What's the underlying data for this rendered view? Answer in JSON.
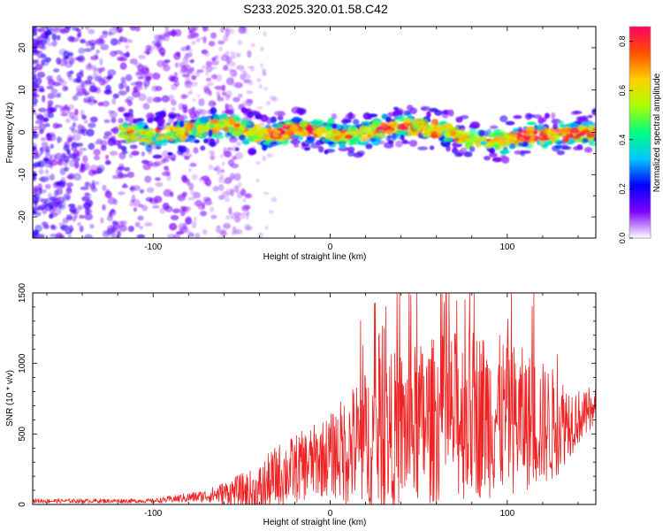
{
  "title": "S233.2025.320.01.58.C42",
  "chart_data": [
    {
      "type": "heatmap",
      "name": "spectrogram",
      "xlabel": "Height of straight line (km)",
      "ylabel": "Frequency (Hz)",
      "xlim": [
        -168,
        150
      ],
      "ylim": [
        -25,
        25
      ],
      "x_ticks": [
        -100,
        0,
        100
      ],
      "y_ticks": [
        -20,
        -10,
        0,
        10,
        20
      ],
      "colorbar": {
        "label": "Normalized spectral amplitude",
        "range": [
          0,
          0.86
        ],
        "ticks": [
          0.0,
          0.2,
          0.4,
          0.6,
          0.8
        ],
        "tick_labels": [
          "0.0",
          "0.2",
          "0.4",
          "0.6",
          "0.8"
        ],
        "colors": [
          "#ffffff",
          "#7e00ff",
          "#0000ff",
          "#00c8ff",
          "#00ff80",
          "#aaff00",
          "#ffd000",
          "#ff5000",
          "#ff0060"
        ]
      },
      "noise_region_x": [
        -168,
        -45
      ],
      "noise_level": 0.3,
      "signal_start_x": -118,
      "ridge": [
        {
          "x": -118,
          "f": 0
        },
        {
          "x": -100,
          "f": -1
        },
        {
          "x": -80,
          "f": 0.5
        },
        {
          "x": -60,
          "f": 2
        },
        {
          "x": -45,
          "f": 0
        },
        {
          "x": -35,
          "f": -1
        },
        {
          "x": -20,
          "f": 1
        },
        {
          "x": -5,
          "f": 0
        },
        {
          "x": 10,
          "f": -1
        },
        {
          "x": 25,
          "f": 0.5
        },
        {
          "x": 40,
          "f": 1.5
        },
        {
          "x": 55,
          "f": 1
        },
        {
          "x": 70,
          "f": 0
        },
        {
          "x": 80,
          "f": -2
        },
        {
          "x": 95,
          "f": -2
        },
        {
          "x": 110,
          "f": -1
        },
        {
          "x": 125,
          "f": -0.5
        },
        {
          "x": 150,
          "f": 0
        }
      ],
      "peak_segments": [
        [
          -35,
          -5
        ],
        [
          25,
          45
        ],
        [
          105,
          150
        ]
      ]
    },
    {
      "type": "line",
      "name": "snr",
      "xlabel": "Height of straight line (km)",
      "ylabel": "SNR (10 * v/v)",
      "xlim": [
        -168,
        150
      ],
      "ylim": [
        0,
        1500
      ],
      "x_ticks": [
        -100,
        0,
        100
      ],
      "y_ticks": [
        0,
        500,
        1000,
        1500
      ],
      "color": "#ee2222",
      "envelope": [
        {
          "x": -168,
          "base": 25,
          "amp": 15
        },
        {
          "x": -100,
          "base": 25,
          "amp": 15
        },
        {
          "x": -70,
          "base": 60,
          "amp": 45
        },
        {
          "x": -50,
          "base": 100,
          "amp": 120
        },
        {
          "x": -42,
          "base": 60,
          "amp": 200
        },
        {
          "x": -30,
          "base": 200,
          "amp": 230
        },
        {
          "x": -10,
          "base": 300,
          "amp": 260
        },
        {
          "x": 0,
          "base": 350,
          "amp": 290
        },
        {
          "x": 15,
          "base": 420,
          "amp": 480
        },
        {
          "x": 30,
          "base": 500,
          "amp": 560
        },
        {
          "x": 60,
          "base": 600,
          "amp": 600
        },
        {
          "x": 80,
          "base": 650,
          "amp": 620
        },
        {
          "x": 100,
          "base": 620,
          "amp": 560
        },
        {
          "x": 125,
          "base": 560,
          "amp": 420
        },
        {
          "x": 140,
          "base": 620,
          "amp": 200
        },
        {
          "x": 150,
          "base": 650,
          "amp": 120
        }
      ],
      "max_value": 1500
    }
  ]
}
